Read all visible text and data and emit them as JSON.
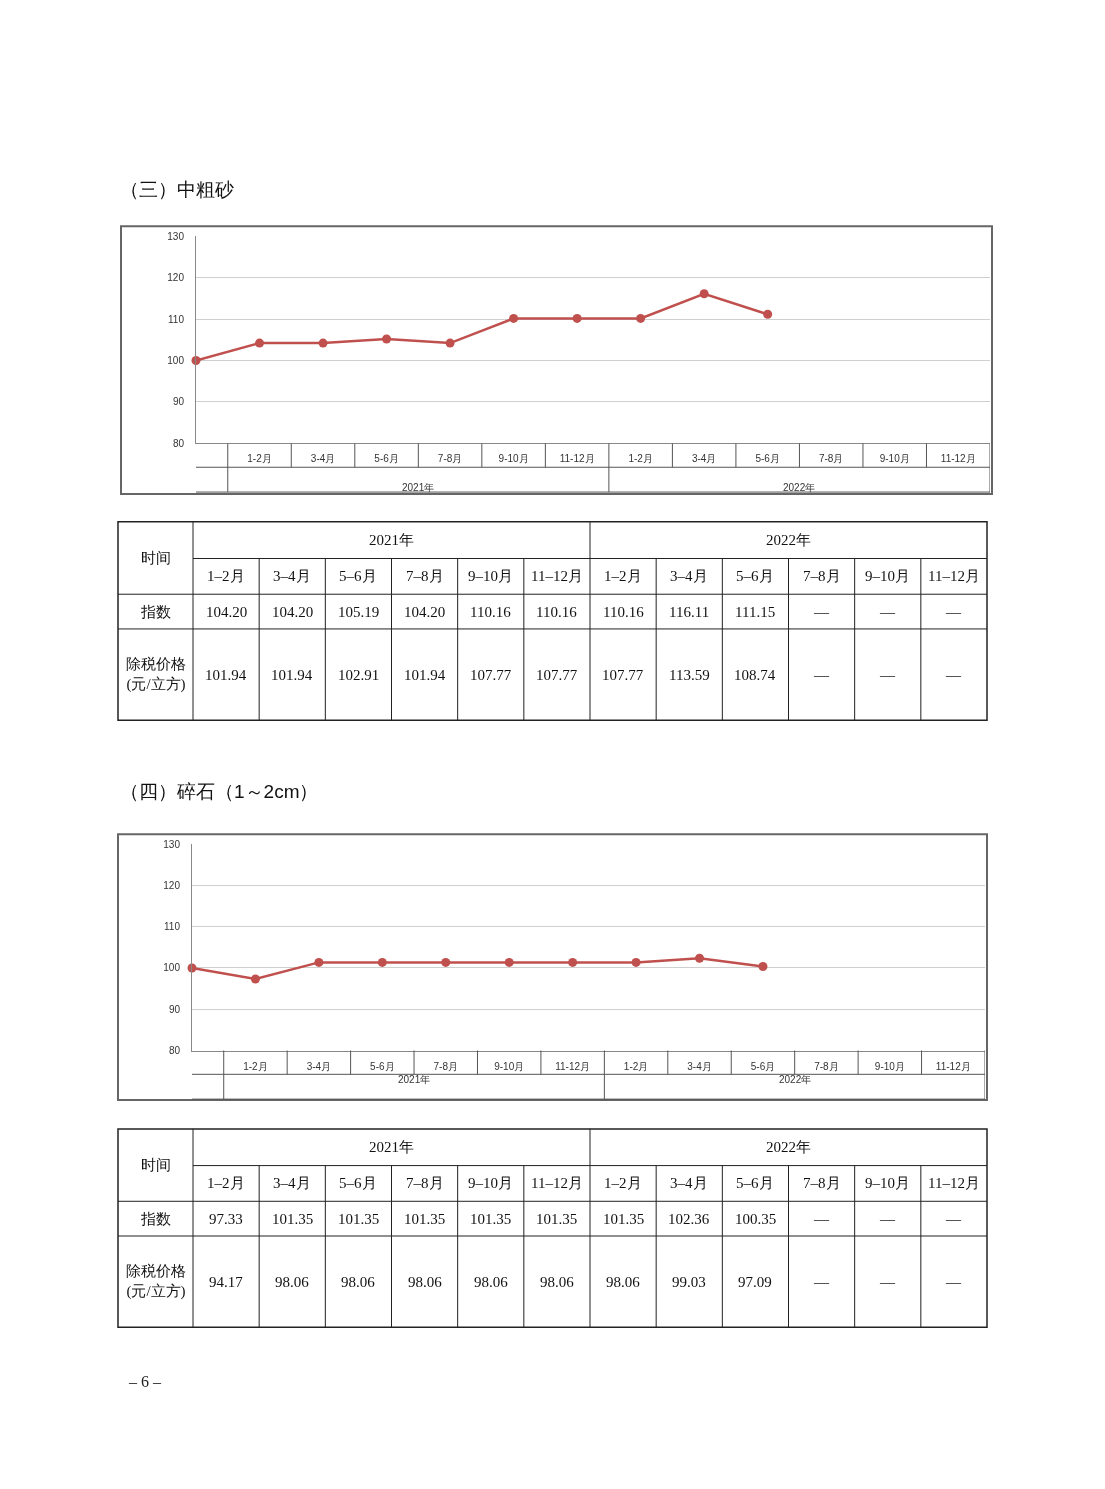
{
  "chart_data": [
    {
      "type": "line",
      "title": "（三）中粗砂",
      "categories": [
        null,
        "1-2月",
        "3-4月",
        "5-6月",
        "7-8月",
        "9-10月",
        "11-12月",
        "1-2月",
        "3-4月",
        "5-6月",
        "7-8月",
        "9-10月",
        "11-12月"
      ],
      "series": [
        {
          "color": "#c0504d",
          "values": [
            100,
            104.2,
            104.2,
            105.19,
            104.2,
            110.16,
            110.16,
            110.16,
            116.11,
            111.15,
            null,
            null,
            null
          ]
        }
      ],
      "annotations": [
        "2021年",
        "2022年"
      ],
      "ylim": [
        80,
        130
      ],
      "yticks": [
        80,
        90,
        100,
        110,
        120,
        130
      ],
      "grid": "y",
      "marker": "circle",
      "line_style": "solid"
    },
    {
      "type": "other",
      "xlabel": "时间",
      "categories": [
        "1–2月",
        "3–4月",
        "5–6月",
        "7–8月",
        "9–10月",
        "11–12月",
        "1–2月",
        "3–4月",
        "5–6月",
        "7–8月",
        "9–10月",
        "11–12月"
      ],
      "annotations": [
        "2021年",
        "2022年"
      ],
      "series": [
        {
          "name": "指数",
          "values": [
            104.2,
            104.2,
            105.19,
            104.2,
            110.16,
            110.16,
            110.16,
            116.11,
            111.15,
            null,
            null,
            null
          ],
          "value_labels": [
            "104.20",
            "104.20",
            "105.19",
            "104.20",
            "110.16",
            "110.16",
            "110.16",
            "116.11",
            "111.15",
            "—",
            "—",
            "—"
          ]
        },
        {
          "name": "除税价格(元/立方)",
          "values": [
            101.94,
            101.94,
            102.91,
            101.94,
            107.77,
            107.77,
            107.77,
            113.59,
            108.74,
            null,
            null,
            null
          ],
          "value_labels": [
            "101.94",
            "101.94",
            "102.91",
            "101.94",
            "107.77",
            "107.77",
            "107.77",
            "113.59",
            "108.74",
            "—",
            "—",
            "—"
          ]
        }
      ]
    },
    {
      "type": "line",
      "title": "（四）碎石（1～2cm）",
      "categories": [
        null,
        "1-2月",
        "3-4月",
        "5-6月",
        "7-8月",
        "9-10月",
        "11-12月",
        "1-2月",
        "3-4月",
        "5-6月",
        "7-8月",
        "9-10月",
        "11-12月"
      ],
      "series": [
        {
          "color": "#c0504d",
          "values": [
            100,
            97.33,
            101.35,
            101.35,
            101.35,
            101.35,
            101.35,
            101.35,
            102.36,
            100.35,
            null,
            null,
            null
          ]
        }
      ],
      "annotations": [
        "2021年",
        "2022年"
      ],
      "ylim": [
        80,
        130
      ],
      "yticks": [
        80,
        90,
        100,
        110,
        120,
        130
      ],
      "grid": "y",
      "marker": "circle",
      "line_style": "solid"
    },
    {
      "type": "other",
      "xlabel": "时间",
      "categories": [
        "1–2月",
        "3–4月",
        "5–6月",
        "7–8月",
        "9–10月",
        "11–12月",
        "1–2月",
        "3–4月",
        "5–6月",
        "7–8月",
        "9–10月",
        "11–12月"
      ],
      "annotations": [
        "2021年",
        "2022年"
      ],
      "series": [
        {
          "name": "指数",
          "values": [
            97.33,
            101.35,
            101.35,
            101.35,
            101.35,
            101.35,
            101.35,
            102.36,
            100.35,
            null,
            null,
            null
          ],
          "value_labels": [
            "97.33",
            "101.35",
            "101.35",
            "101.35",
            "101.35",
            "101.35",
            "101.35",
            "102.36",
            "100.35",
            "—",
            "—",
            "—"
          ]
        },
        {
          "name": "除税价格(元/立方)",
          "values": [
            94.17,
            98.06,
            98.06,
            98.06,
            98.06,
            98.06,
            98.06,
            99.03,
            97.09,
            null,
            null,
            null
          ],
          "value_labels": [
            "94.17",
            "98.06",
            "98.06",
            "98.06",
            "98.06",
            "98.06",
            "98.06",
            "99.03",
            "97.09",
            "—",
            "—",
            "—"
          ]
        }
      ]
    },
    {
      "type": "other",
      "annotations": [
        "– 6 –"
      ]
    }
  ]
}
